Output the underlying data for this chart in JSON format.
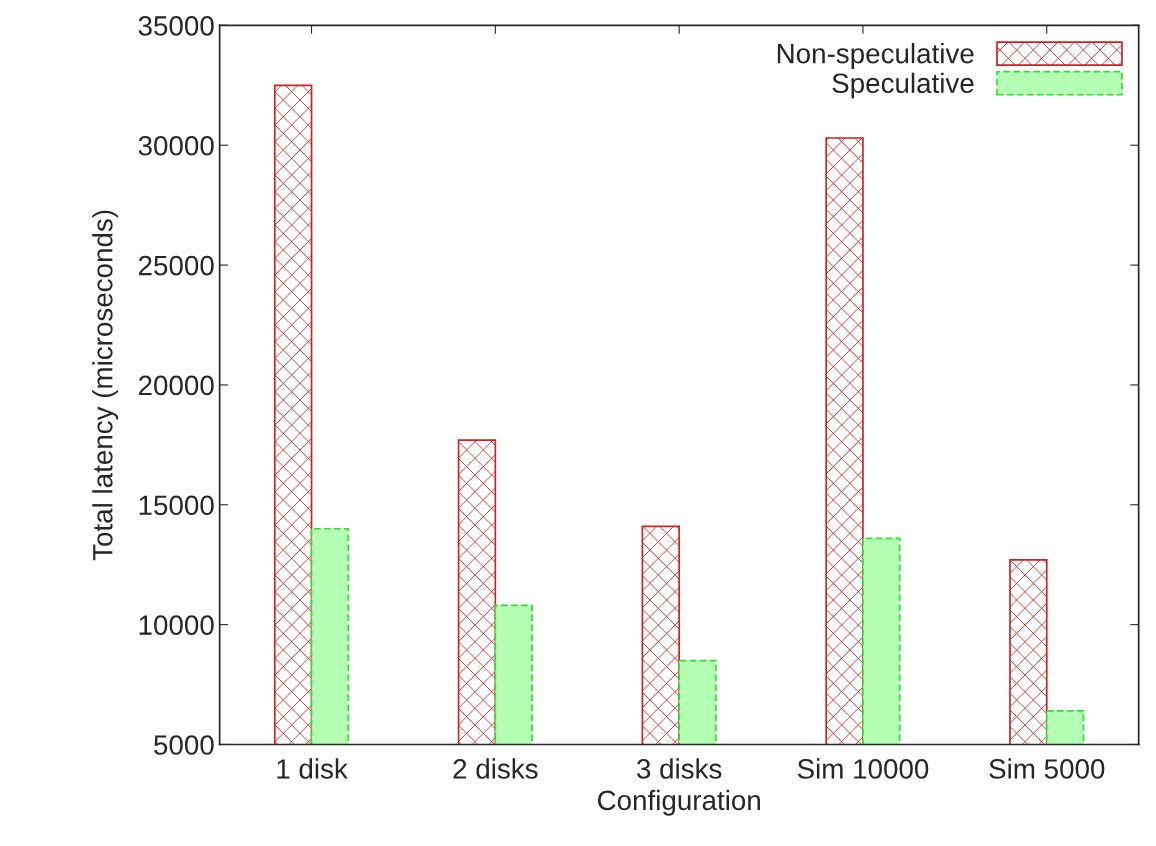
{
  "chart_data": {
    "type": "bar",
    "xlabel": "Configuration",
    "ylabel": "Total latency (microseconds)",
    "categories": [
      "1 disk",
      "2 disks",
      "3 disks",
      "Sim 10000",
      "Sim 5000"
    ],
    "series": [
      {
        "name": "Non-speculative",
        "color": "#cc2222",
        "line_style": "solid",
        "values": [
          32500,
          17700,
          14100,
          30300,
          12700
        ]
      },
      {
        "name": "Speculative",
        "color": "#b3ffb3",
        "line_style": "dashed",
        "values": [
          14000,
          10800,
          8500,
          13600,
          6400
        ]
      }
    ],
    "ylim": [
      5000,
      35000
    ],
    "yticks": [
      5000,
      10000,
      15000,
      20000,
      25000,
      30000,
      35000
    ],
    "grid": false,
    "legend": "top right"
  }
}
